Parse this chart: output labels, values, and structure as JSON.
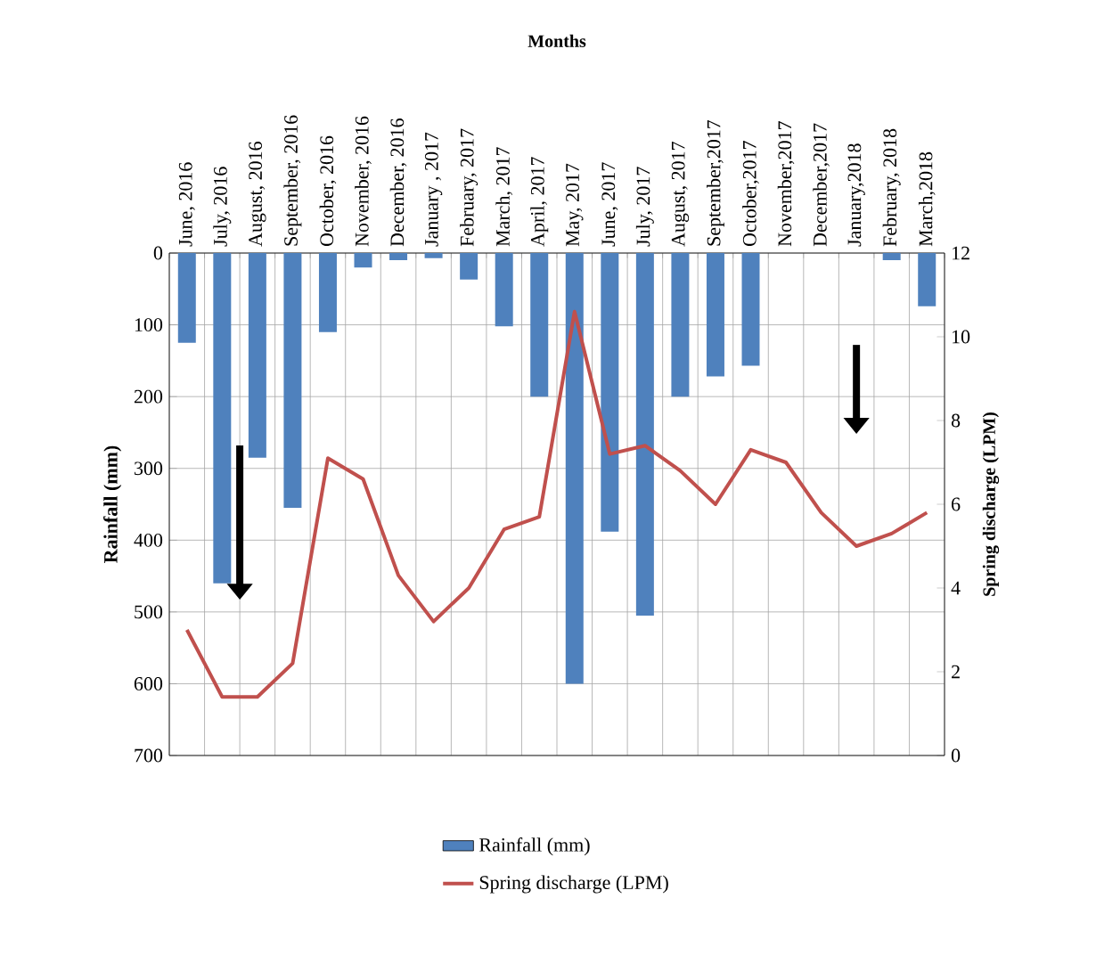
{
  "chart_data": {
    "type": "bar",
    "xlabel": "Months",
    "ylabel": "Rainfall (mm)",
    "y2label": "Spring discharge (LPM)",
    "categories": [
      "June, 2016",
      "July, 2016",
      "August, 2016",
      "September, 2016",
      "October, 2016",
      "November, 2016",
      "December, 2016",
      "January , 2017",
      "February, 2017",
      "March, 2017",
      "April, 2017",
      "May, 2017",
      "June, 2017",
      "July, 2017",
      "August, 2017",
      "September,2017",
      "October,2017",
      "November,2017",
      "December,2017",
      "January,2018",
      "February, 2018",
      "March,2018"
    ],
    "series": [
      {
        "name": "Rainfall (mm)",
        "color": "#4f81bd",
        "values": [
          125,
          460,
          285,
          355,
          110,
          20,
          10,
          7,
          37,
          102,
          200,
          600,
          388,
          505,
          200,
          172,
          157,
          0,
          0,
          0,
          10,
          74
        ]
      },
      {
        "name": "Spring discharge (LPM)",
        "type": "line",
        "axis": "y2",
        "color": "#c0504d",
        "values": [
          3.0,
          1.4,
          1.4,
          2.2,
          7.1,
          6.6,
          4.3,
          3.2,
          4.0,
          5.4,
          5.7,
          10.6,
          7.2,
          7.4,
          6.8,
          6.0,
          7.3,
          7.0,
          5.8,
          5.0,
          5.3,
          5.8
        ]
      }
    ],
    "ylim": [
      700,
      0
    ],
    "yticks": [
      0,
      100,
      200,
      300,
      400,
      500,
      600,
      700
    ],
    "y2lim": [
      0,
      12
    ],
    "y2ticks": [
      0,
      2,
      4,
      6,
      8,
      10,
      12
    ],
    "grid": true,
    "legend": "bottom",
    "marker": "none",
    "line_style": "solid"
  }
}
